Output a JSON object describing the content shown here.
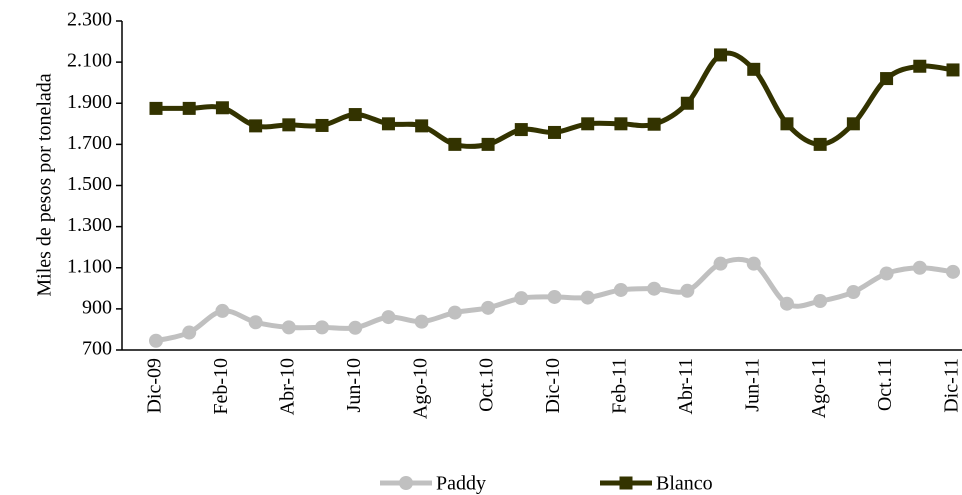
{
  "chart_data": {
    "type": "line",
    "y_label": "Miles de pesos por tonelada",
    "categories": [
      "Dic-09",
      null,
      "Feb-10",
      null,
      "Abr-10",
      null,
      "Jun-10",
      null,
      "Ago-10",
      null,
      "Oct.10",
      null,
      "Dic-10",
      null,
      "Feb-11",
      null,
      "Abr-11",
      null,
      "Jun-11",
      null,
      "Ago-11",
      null,
      "Oct.11",
      null,
      "Dic-11"
    ],
    "series": [
      {
        "name": "Paddy",
        "color": "#c0c0c0",
        "marker": "circle",
        "values": [
          745,
          785,
          890,
          835,
          810,
          810,
          808,
          860,
          838,
          882,
          905,
          952,
          958,
          955,
          992,
          998,
          988,
          1120,
          1120,
          925,
          938,
          982,
          1072,
          1100,
          1080
        ]
      },
      {
        "name": "Blanco",
        "color": "#333300",
        "marker": "square",
        "values": [
          1875,
          1875,
          1878,
          1790,
          1795,
          1792,
          1845,
          1800,
          1790,
          1700,
          1700,
          1772,
          1758,
          1800,
          1800,
          1798,
          1900,
          2135,
          2065,
          1800,
          1700,
          1800,
          2020,
          2080,
          2062
        ]
      }
    ],
    "ylim": [
      700,
      2300
    ],
    "yticks": [
      700,
      900,
      {
        "value": 1100,
        "label": "1.100"
      },
      {
        "value": 1300,
        "label": "1.300"
      },
      {
        "value": 1500,
        "label": "1.500"
      },
      {
        "value": 1700,
        "label": "1.700"
      },
      {
        "value": 1900,
        "label": "1.900"
      },
      {
        "value": 2100,
        "label": "2.100"
      },
      {
        "value": 2300,
        "label": "2.300"
      }
    ],
    "legend": "bottom"
  }
}
